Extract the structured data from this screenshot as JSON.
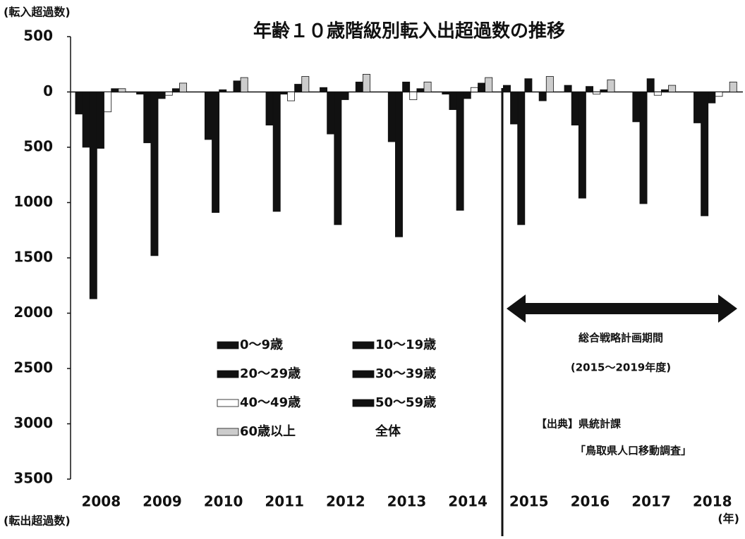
{
  "chart_data": {
    "type": "bar",
    "title": "年齢１０歳階級別転入出超過数の推移",
    "y_label_top": "(転入超過数)",
    "y_label_bottom": "(転出超過数)",
    "x_label": "(年)",
    "annotations": [
      "総合戦略計画期間",
      "(2015～2019年度)",
      "【出典】県統計課",
      "「鳥取県人口移動調査」"
    ],
    "categories": [
      "2008",
      "2009",
      "2010",
      "2011",
      "2012",
      "2013",
      "2014",
      "2015",
      "2016",
      "2017",
      "2018"
    ],
    "series": [
      {
        "name": "0～9歳",
        "color": "#111111",
        "values": [
          -200,
          -20,
          0,
          0,
          40,
          0,
          -20,
          60,
          60,
          0,
          0
        ]
      },
      {
        "name": "10～19歳",
        "color": "#111111",
        "values": [
          -500,
          -460,
          -430,
          -300,
          -380,
          -450,
          -160,
          -290,
          -300,
          -270,
          -280
        ]
      },
      {
        "name": "20～29歳",
        "color": "#111111",
        "values": [
          -1870,
          -1480,
          -1090,
          -1080,
          -1200,
          -1310,
          -1070,
          -1200,
          -960,
          -1010,
          -1120
        ]
      },
      {
        "name": "30～39歳",
        "color": "#111111",
        "values": [
          -510,
          -60,
          20,
          -20,
          -70,
          90,
          -60,
          120,
          50,
          120,
          -100
        ]
      },
      {
        "name": "40～49歳",
        "color": "#ffffff",
        "values": [
          -180,
          -30,
          0,
          -80,
          0,
          -70,
          40,
          0,
          -20,
          -30,
          -40
        ]
      },
      {
        "name": "50～59歳",
        "color": "#111111",
        "values": [
          30,
          30,
          100,
          70,
          90,
          30,
          80,
          -80,
          20,
          20,
          0
        ]
      },
      {
        "name": "60歳以上",
        "color": "#cccccc",
        "values": [
          30,
          80,
          130,
          140,
          160,
          90,
          130,
          140,
          110,
          60,
          90
        ]
      },
      {
        "name": "全体",
        "color": "#111111",
        "values": [
          null,
          null,
          null,
          null,
          null,
          null,
          null,
          null,
          null,
          null,
          null
        ]
      }
    ],
    "ylim": [
      -3500,
      500
    ],
    "yticks": [
      {
        "value": 500,
        "label": "500"
      },
      0,
      {
        "value": -500,
        "label": "500"
      },
      {
        "value": -1000,
        "label": "1000"
      },
      {
        "value": -1500,
        "label": "1500"
      },
      {
        "value": -2000,
        "label": "2000"
      },
      {
        "value": -2500,
        "label": "2500"
      },
      {
        "value": -3000,
        "label": "3000"
      },
      {
        "value": -3500,
        "label": "3500"
      }
    ]
  }
}
